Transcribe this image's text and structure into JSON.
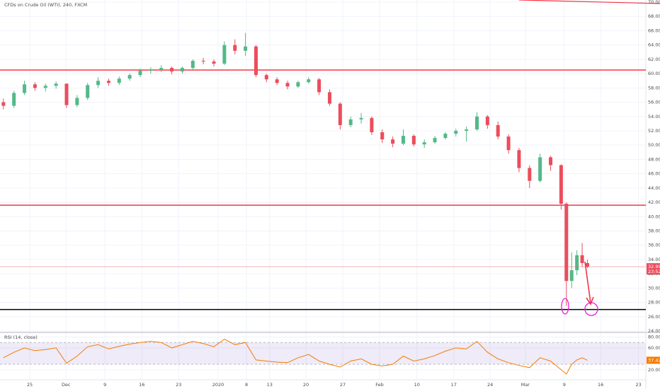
{
  "chart_data": [
    {
      "type": "candlestick",
      "title": "CFDs on Crude Oil (WTI), 240, FXCM",
      "x": [
        -5,
        -3,
        -1,
        1,
        3,
        5,
        7,
        9,
        11,
        13,
        15,
        17,
        19,
        21,
        23,
        25,
        27,
        29,
        31,
        33,
        35,
        37,
        39,
        41,
        43,
        45,
        47,
        49,
        51,
        53,
        55,
        57,
        59,
        61,
        63,
        65,
        67,
        69,
        71,
        73,
        75,
        77,
        79,
        81,
        83,
        85,
        87,
        89,
        91,
        93,
        95,
        97,
        99,
        101,
        102,
        103,
        104,
        105,
        106
      ],
      "open": [
        56,
        55.5,
        57.3,
        58.5,
        58,
        58.3,
        58.6,
        55.6,
        56.6,
        58.4,
        59,
        58.7,
        59.3,
        59.8,
        60.4,
        60.6,
        60.8,
        60.3,
        60.8,
        61.8,
        61.7,
        61.4,
        64,
        63.2,
        63.8,
        59.8,
        59.2,
        58.7,
        58.2,
        58.8,
        59.2,
        57.4,
        55.8,
        52.8,
        53.6,
        53.8,
        51.8,
        50.8,
        50.2,
        51.3,
        50.1,
        50.4,
        51,
        51.6,
        52,
        52.2,
        54,
        52.8,
        51.2,
        49.3,
        46.8,
        45,
        48.3,
        47.2,
        41.8,
        31,
        32.5,
        34.6,
        33.5
      ],
      "high": [
        56.5,
        57.6,
        59,
        58.8,
        58.6,
        58.9,
        58.6,
        57,
        58.7,
        59.5,
        59.3,
        59.6,
        60,
        60.7,
        60.9,
        61.2,
        61,
        61,
        62,
        62.2,
        62,
        64.5,
        64.8,
        65.7,
        64,
        60,
        59.5,
        59,
        59,
        59.5,
        59.4,
        57.8,
        56,
        54,
        54.5,
        54,
        52.2,
        51.2,
        52.2,
        51.5,
        50.8,
        51.3,
        51.8,
        52.3,
        52.6,
        54.6,
        54.2,
        53.3,
        51.5,
        49.6,
        47.2,
        48.8,
        48.5,
        47.3,
        42,
        35,
        35.3,
        36.3,
        34
      ],
      "low": [
        55,
        55.2,
        57,
        57.6,
        57.5,
        57.9,
        55.2,
        55.3,
        56.3,
        58,
        58.3,
        58.4,
        59,
        59.5,
        60,
        60.2,
        59.9,
        60,
        60.6,
        61.3,
        61,
        61.2,
        62.7,
        62.5,
        59.5,
        58.8,
        58.4,
        57.8,
        58,
        58.6,
        57,
        55.5,
        52.2,
        52.5,
        53,
        51.4,
        50.3,
        49.7,
        50,
        49.8,
        49.6,
        50.2,
        50.8,
        51.2,
        50.5,
        52,
        52.3,
        50.8,
        48.8,
        46.2,
        44,
        44.8,
        46.4,
        41,
        27.5,
        30,
        31.8,
        33,
        32.8
      ],
      "close": [
        55.5,
        57.3,
        58.5,
        58,
        58.3,
        58.6,
        55.6,
        56.6,
        58.4,
        59,
        58.7,
        59.3,
        59.8,
        60.4,
        60.6,
        60.8,
        60.3,
        60.8,
        61.8,
        61.7,
        61.4,
        64,
        63.2,
        63.8,
        59.8,
        59.2,
        58.7,
        58.2,
        58.8,
        59.2,
        57.4,
        55.8,
        52.8,
        53.6,
        53.8,
        51.8,
        50.8,
        50.2,
        51.3,
        50.1,
        50.4,
        51,
        51.6,
        52,
        52.2,
        54,
        52.8,
        51.2,
        49.3,
        46.8,
        45,
        48.3,
        47.2,
        41.8,
        31,
        32.5,
        34.6,
        33.5,
        32.99
      ],
      "up_color": "#53b987",
      "down_color": "#eb4d5c",
      "levels": [
        60.5,
        41.6,
        27
      ],
      "level_colors": [
        "#f23645",
        "#f23645",
        "#000000"
      ],
      "countdown": "23:52",
      "xlim": [
        -5.65,
        117.1
      ],
      "ylim": [
        23.8,
        70.3
      ],
      "yticks": [
        {
          "value": 24,
          "label": "24.00"
        },
        {
          "value": 26,
          "label": "26.00"
        },
        {
          "value": 28,
          "label": "28.00"
        },
        {
          "value": 30,
          "label": "30.00"
        },
        {
          "value": 32,
          "label": "32.00"
        },
        {
          "value": 34,
          "label": "34.00"
        },
        {
          "value": 36,
          "label": "36.00"
        },
        {
          "value": 38,
          "label": "38.00"
        },
        {
          "value": 40,
          "label": "40.00"
        },
        {
          "value": 42,
          "label": "42.00"
        },
        {
          "value": 44,
          "label": "44.00"
        },
        {
          "value": 46,
          "label": "46.00"
        },
        {
          "value": 48,
          "label": "48.00"
        },
        {
          "value": 50,
          "label": "50.00"
        },
        {
          "value": 52,
          "label": "52.00"
        },
        {
          "value": 54,
          "label": "54.00"
        },
        {
          "value": 56,
          "label": "56.00"
        },
        {
          "value": 58,
          "label": "58.00"
        },
        {
          "value": 60,
          "label": "60.00"
        },
        {
          "value": 62,
          "label": "62.00"
        },
        {
          "value": 64,
          "label": "64.00"
        },
        {
          "value": 66,
          "label": "66.00"
        },
        {
          "value": 68,
          "label": "68.00"
        },
        {
          "value": 70,
          "label": "70.00"
        }
      ],
      "grid": true
    },
    {
      "type": "line",
      "title": "RSI (14, close)",
      "x": [
        -5,
        -3,
        -1,
        1,
        3,
        5,
        7,
        9,
        11,
        13,
        15,
        17,
        19,
        21,
        23,
        25,
        27,
        29,
        31,
        33,
        35,
        37,
        39,
        41,
        43,
        45,
        47,
        49,
        51,
        53,
        55,
        57,
        59,
        61,
        63,
        65,
        67,
        69,
        71,
        73,
        75,
        77,
        79,
        81,
        83,
        85,
        87,
        89,
        91,
        93,
        95,
        97,
        99,
        101,
        102,
        103,
        104,
        105,
        106
      ],
      "values": [
        42,
        52,
        60,
        55,
        57,
        60,
        32,
        45,
        62,
        66,
        58,
        63,
        67,
        70,
        72,
        70,
        60,
        66,
        72,
        68,
        62,
        76,
        66,
        70,
        38,
        36,
        34,
        33,
        42,
        48,
        36,
        30,
        25,
        36,
        40,
        30,
        27,
        30,
        45,
        36,
        40,
        46,
        54,
        60,
        58,
        72,
        52,
        40,
        33,
        28,
        24,
        42,
        36,
        20,
        12,
        30,
        38,
        42,
        37.42
      ],
      "color": "#f57c00",
      "band": [
        30,
        70
      ],
      "band_color": "#7e57c2",
      "xlim": [
        -5.65,
        117.1
      ],
      "ylim": [
        3,
        87
      ],
      "yticks": [
        {
          "value": 20,
          "label": "20.00"
        },
        {
          "value": 60,
          "label": "60.00"
        },
        {
          "value": 80,
          "label": "80.00"
        }
      ],
      "xticks": [
        {
          "value": 0,
          "label": "25"
        },
        {
          "value": 6.9,
          "label": "Dec"
        },
        {
          "value": 14.3,
          "label": "9"
        },
        {
          "value": 21.3,
          "label": "16"
        },
        {
          "value": 28.3,
          "label": "23"
        },
        {
          "value": 35.8,
          "label": "2020"
        },
        {
          "value": 41.2,
          "label": "8"
        },
        {
          "value": 45.6,
          "label": "13"
        },
        {
          "value": 52.5,
          "label": "20"
        },
        {
          "value": 59.5,
          "label": "27"
        },
        {
          "value": 66.5,
          "label": "Feb"
        },
        {
          "value": 73.6,
          "label": "10"
        },
        {
          "value": 80.6,
          "label": "17"
        },
        {
          "value": 87.5,
          "label": "24"
        },
        {
          "value": 94.2,
          "label": "Mar"
        },
        {
          "value": 101.6,
          "label": "9"
        },
        {
          "value": 108.5,
          "label": "16"
        },
        {
          "value": 115.7,
          "label": "23"
        }
      ],
      "grid": true
    }
  ]
}
